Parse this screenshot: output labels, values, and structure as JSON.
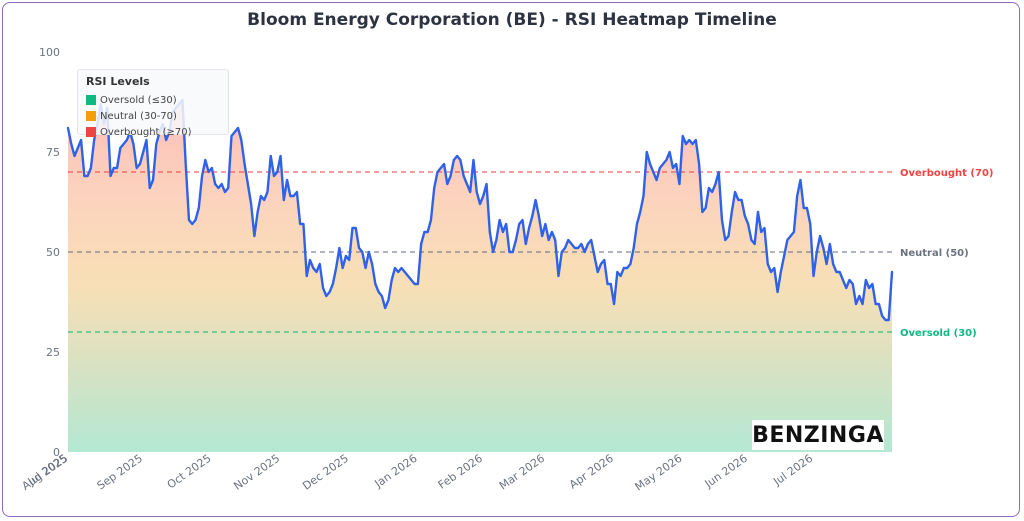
{
  "page": {
    "title": "Bloom Energy Corporation (BE) - RSI Heatmap Timeline",
    "watermark": "BENZINGA"
  },
  "legend": {
    "title": "RSI Levels",
    "items": [
      {
        "label": "Oversold (≤30)",
        "color": "#10b981"
      },
      {
        "label": "Neutral (30-70)",
        "color": "#f59e0b"
      },
      {
        "label": "Overbought (≥70)",
        "color": "#ef4444"
      }
    ]
  },
  "chart_data": {
    "type": "area",
    "title": "Bloom Energy Corporation (BE) - RSI Heatmap Timeline",
    "xlabel": "",
    "ylabel": "",
    "ylim": [
      0,
      100
    ],
    "yticks": [
      0,
      25,
      50,
      75,
      100
    ],
    "grid": false,
    "legend_placement": "top-left",
    "line_color": "#2f62e8",
    "x_ticks": [
      {
        "label": "Jul 2025",
        "t": 0
      },
      {
        "label": "Aug 2025",
        "t": 0.2
      },
      {
        "label": "Sep 2025",
        "t": 23
      },
      {
        "label": "Oct 2025",
        "t": 44
      },
      {
        "label": "Nov 2025",
        "t": 65
      },
      {
        "label": "Dec 2025",
        "t": 86
      },
      {
        "label": "Jan 2026",
        "t": 107
      },
      {
        "label": "Feb 2026",
        "t": 127
      },
      {
        "label": "Mar 2026",
        "t": 146
      },
      {
        "label": "Apr 2026",
        "t": 167
      },
      {
        "label": "May 2026",
        "t": 188
      },
      {
        "label": "Jun 2026",
        "t": 208
      },
      {
        "label": "Jul 2026",
        "t": 228
      }
    ],
    "reference_lines": [
      {
        "label": "Overbought (70)",
        "value": 70,
        "color": "#ef4444"
      },
      {
        "label": "Neutral (50)",
        "value": 50,
        "color": "#6b7280"
      },
      {
        "label": "Oversold (30)",
        "value": 30,
        "color": "#10b981"
      }
    ],
    "series": [
      {
        "values": [
          81,
          77,
          74,
          76,
          78,
          69,
          69,
          71,
          78,
          82,
          87,
          82,
          86,
          69,
          71,
          71,
          76,
          77,
          78,
          80,
          77,
          71,
          72,
          75,
          78,
          66,
          68,
          77,
          80,
          82,
          78,
          80,
          85,
          86,
          87,
          88,
          72,
          58,
          57,
          58,
          61,
          69,
          73,
          70,
          71,
          67,
          66,
          67,
          65,
          66,
          79,
          80,
          81,
          78,
          72,
          67,
          62,
          54,
          60,
          64,
          63,
          65,
          74,
          69,
          70,
          74,
          63,
          68,
          64,
          64,
          65,
          57,
          57,
          44,
          48,
          46,
          45,
          47,
          41,
          39,
          40,
          42,
          46,
          51,
          46,
          49,
          48,
          56,
          56,
          51,
          50,
          46,
          50,
          47,
          42,
          40,
          39,
          36,
          38,
          43,
          46,
          45,
          46,
          45,
          44,
          43,
          42,
          42,
          52,
          55,
          55,
          58,
          66,
          70,
          71,
          72,
          67,
          69,
          73,
          74,
          73,
          69,
          67,
          65,
          73,
          65,
          62,
          64,
          67,
          55,
          50,
          53,
          58,
          55,
          57,
          50,
          50,
          53,
          57,
          58,
          52,
          56,
          59,
          63,
          59,
          54,
          57,
          53,
          55,
          53,
          44,
          50,
          51,
          53,
          52,
          51,
          51,
          52,
          50,
          52,
          53,
          49,
          45,
          47,
          48,
          42,
          42,
          37,
          45,
          44,
          46,
          46,
          47,
          51,
          57,
          60,
          64,
          75,
          72,
          70,
          68,
          71,
          72,
          73,
          75,
          71,
          72,
          67,
          79,
          77,
          78,
          77,
          78,
          72,
          60,
          61,
          66,
          65,
          67,
          70,
          58,
          53,
          54,
          60,
          65,
          63,
          63,
          59,
          57,
          53,
          52,
          60,
          55,
          56,
          47,
          45,
          46,
          40,
          45,
          49,
          53,
          54,
          55,
          64,
          68,
          61,
          61,
          57,
          44,
          50,
          54,
          51,
          47,
          52,
          47,
          45,
          45,
          43,
          41,
          43,
          42,
          37,
          39,
          37,
          43,
          41,
          42,
          37,
          37,
          34,
          33,
          33,
          45
        ]
      }
    ]
  }
}
